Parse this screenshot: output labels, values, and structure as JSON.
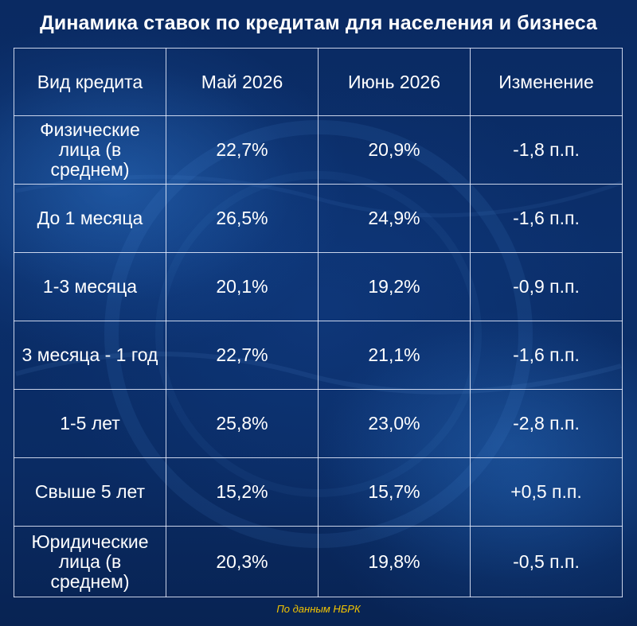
{
  "title": "Динамика ставок по кредитам для населения и бизнеса",
  "table": {
    "headers": [
      "Вид кредита",
      "Май 2026",
      "Июнь 2026",
      "Изменение"
    ],
    "rows": [
      [
        "Физические лица (в среднем)",
        "22,7%",
        "20,9%",
        "-1,8 п.п."
      ],
      [
        "До 1 месяца",
        "26,5%",
        "24,9%",
        "-1,6 п.п."
      ],
      [
        "1-3 месяца",
        "20,1%",
        "19,2%",
        "-0,9 п.п."
      ],
      [
        "3 месяца - 1 год",
        "22,7%",
        "21,1%",
        "-1,6 п.п."
      ],
      [
        "1-5 лет",
        "25,8%",
        "23,0%",
        "-2,8 п.п."
      ],
      [
        "Свыше 5 лет",
        "15,2%",
        "15,7%",
        "+0,5 п.п."
      ],
      [
        "Юридические лица (в среднем)",
        "20,3%",
        "19,8%",
        "-0,5 п.п."
      ]
    ]
  },
  "source": "По данным НБРК",
  "colors": {
    "background": "#0a2a62",
    "text": "#ffffff",
    "grid": "#ebf0ff",
    "source_text": "#f3c400"
  }
}
